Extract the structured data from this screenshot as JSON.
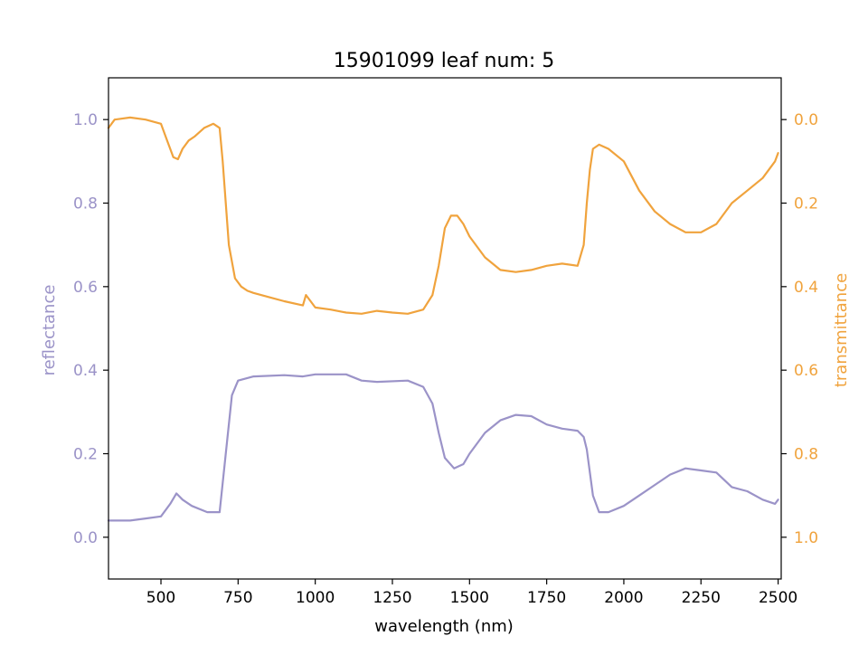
{
  "chart_data": {
    "type": "line",
    "title": "15901099 leaf num: 5",
    "xlabel": "wavelength (nm)",
    "ylabel_left": "reflectance",
    "ylabel_right": "transmittance",
    "xlim": [
      330,
      2510
    ],
    "ylim_left": [
      -0.1,
      1.1
    ],
    "ylim_right_inverted": [
      1.1,
      -0.1
    ],
    "x_ticks": [
      500,
      750,
      1000,
      1250,
      1500,
      1750,
      2000,
      2250,
      2500
    ],
    "x_tick_labels": [
      "500",
      "750",
      "1000",
      "1250",
      "1500",
      "1750",
      "2000",
      "2250",
      "2500"
    ],
    "y_left_ticks": [
      0.0,
      0.2,
      0.4,
      0.6,
      0.8,
      1.0
    ],
    "y_left_tick_labels": [
      "0.0",
      "0.2",
      "0.4",
      "0.6",
      "0.8",
      "1.0"
    ],
    "y_right_ticks": [
      0.0,
      0.2,
      0.4,
      0.6,
      0.8,
      1.0
    ],
    "y_right_tick_labels": [
      "0.0",
      "0.2",
      "0.4",
      "0.6",
      "0.8",
      "1.0"
    ],
    "grid": false,
    "colors": {
      "reflectance": "#9b93c8",
      "transmittance": "#f0a33d"
    },
    "series": [
      {
        "axis": "left",
        "x": [
          330,
          350,
          400,
          450,
          500,
          530,
          550,
          570,
          600,
          650,
          690,
          710,
          730,
          750,
          800,
          900,
          960,
          1000,
          1050,
          1100,
          1150,
          1200,
          1300,
          1350,
          1380,
          1400,
          1420,
          1450,
          1480,
          1500,
          1550,
          1600,
          1650,
          1700,
          1750,
          1800,
          1850,
          1870,
          1880,
          1900,
          1920,
          1950,
          2000,
          2050,
          2100,
          2150,
          2200,
          2250,
          2300,
          2350,
          2400,
          2450,
          2490,
          2500
        ],
        "y": [
          0.04,
          0.04,
          0.04,
          0.045,
          0.05,
          0.08,
          0.105,
          0.09,
          0.075,
          0.06,
          0.06,
          0.2,
          0.34,
          0.375,
          0.385,
          0.388,
          0.385,
          0.39,
          0.39,
          0.39,
          0.375,
          0.372,
          0.375,
          0.36,
          0.32,
          0.25,
          0.19,
          0.165,
          0.175,
          0.2,
          0.25,
          0.28,
          0.293,
          0.29,
          0.27,
          0.26,
          0.255,
          0.24,
          0.21,
          0.1,
          0.06,
          0.06,
          0.075,
          0.1,
          0.125,
          0.15,
          0.165,
          0.16,
          0.155,
          0.12,
          0.11,
          0.09,
          0.08,
          0.09
        ]
      },
      {
        "axis": "right",
        "x": [
          330,
          350,
          400,
          450,
          500,
          520,
          540,
          555,
          570,
          590,
          610,
          640,
          670,
          690,
          700,
          720,
          740,
          760,
          780,
          800,
          850,
          900,
          960,
          970,
          1000,
          1050,
          1100,
          1150,
          1200,
          1250,
          1300,
          1350,
          1380,
          1400,
          1420,
          1440,
          1460,
          1480,
          1500,
          1550,
          1600,
          1650,
          1700,
          1750,
          1800,
          1850,
          1870,
          1880,
          1890,
          1900,
          1920,
          1950,
          2000,
          2050,
          2100,
          2150,
          2200,
          2250,
          2300,
          2350,
          2400,
          2450,
          2490,
          2500
        ],
        "y": [
          0.02,
          0.0,
          -0.005,
          0.0,
          0.01,
          0.05,
          0.09,
          0.095,
          0.07,
          0.05,
          0.04,
          0.02,
          0.01,
          0.02,
          0.1,
          0.3,
          0.38,
          0.4,
          0.41,
          0.415,
          0.425,
          0.435,
          0.445,
          0.42,
          0.45,
          0.455,
          0.462,
          0.465,
          0.458,
          0.462,
          0.465,
          0.455,
          0.42,
          0.35,
          0.26,
          0.23,
          0.23,
          0.25,
          0.28,
          0.33,
          0.36,
          0.365,
          0.36,
          0.35,
          0.345,
          0.35,
          0.3,
          0.2,
          0.12,
          0.07,
          0.06,
          0.07,
          0.1,
          0.17,
          0.22,
          0.25,
          0.27,
          0.27,
          0.25,
          0.2,
          0.17,
          0.14,
          0.1,
          0.08
        ]
      }
    ]
  }
}
